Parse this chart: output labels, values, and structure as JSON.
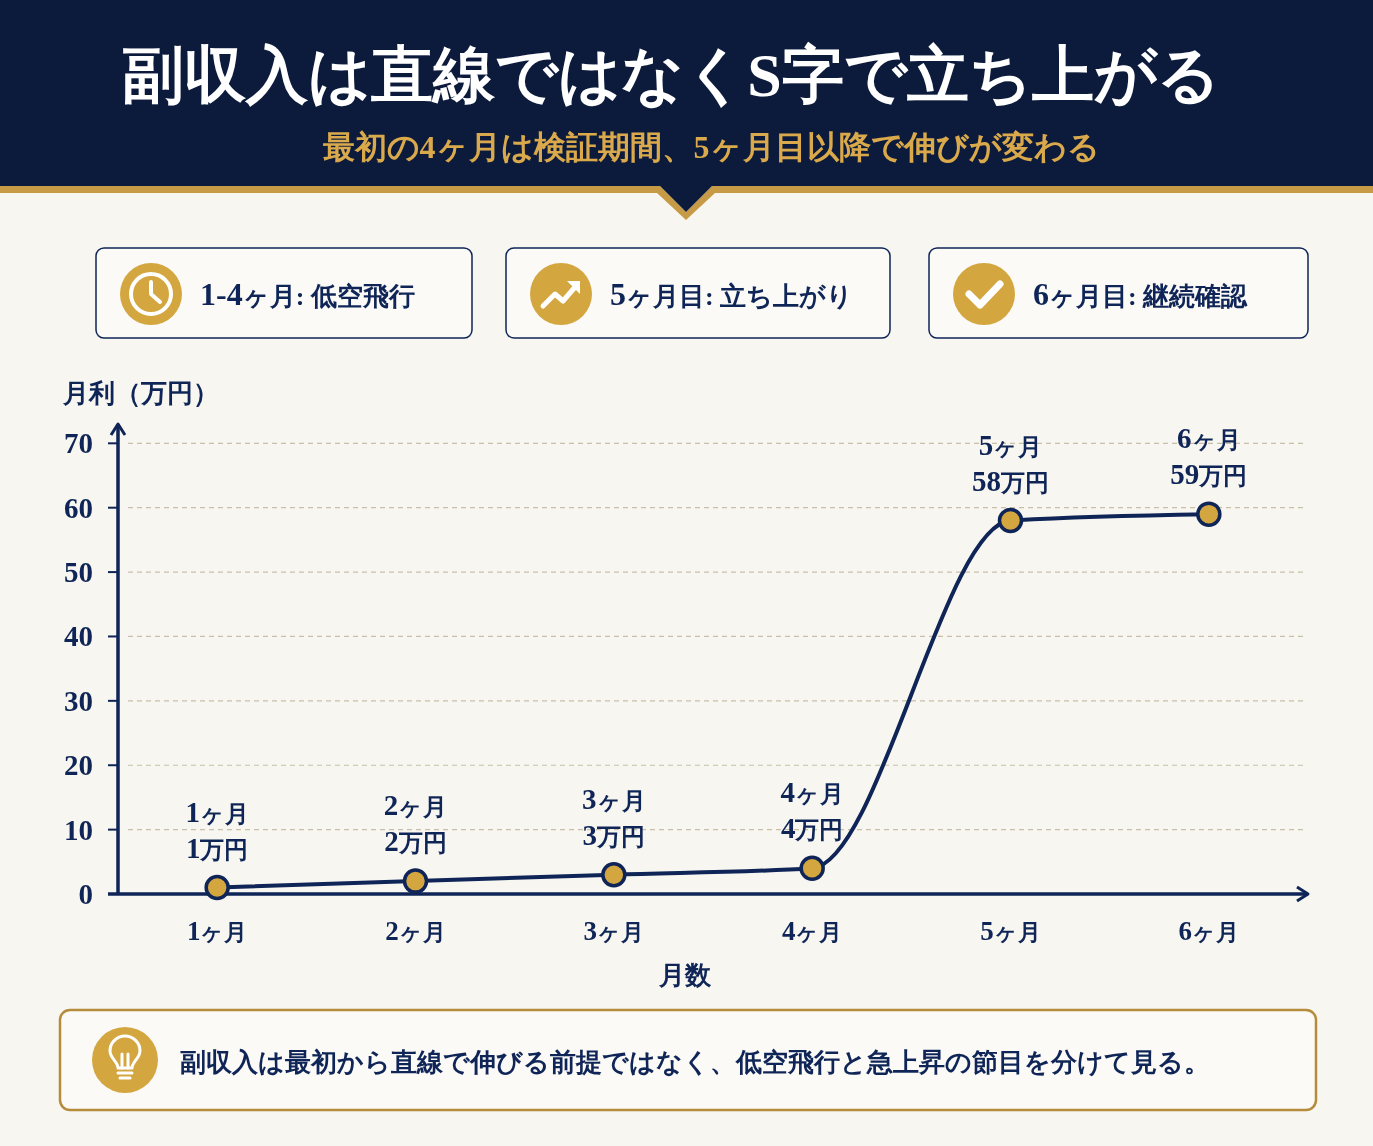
{
  "chart_data": {
    "type": "line",
    "title": "副収入は直線ではなくS字で立ち上がる",
    "subtitle": "最初の4ヶ月は検証期間、5ヶ月目以降で伸びが変わる",
    "xlabel": "月数",
    "ylabel": "月利（万円）",
    "categories": [
      "1ヶ月",
      "2ヶ月",
      "3ヶ月",
      "4ヶ月",
      "5ヶ月",
      "6ヶ月"
    ],
    "series": [
      {
        "color": "#0f2557",
        "values": [
          1,
          2,
          3,
          4,
          58,
          59
        ],
        "value_labels": [
          "1ヶ月\n1万円",
          "2ヶ月\n2万円",
          "3ヶ月\n3万円",
          "4ヶ月\n4万円",
          "5ヶ月\n58万円",
          "6ヶ月\n59万円"
        ]
      }
    ],
    "ylim": [
      0,
      73
    ],
    "yticks": [
      0,
      10,
      20,
      30,
      40,
      50,
      60,
      70
    ],
    "grid": "y",
    "marker": "circle",
    "line_style": "solid",
    "annotations": [
      "1-4ヶ月: 低空飛行",
      "5ヶ月目: 立ち上がり",
      "6ヶ月目: 継続確認",
      "副収入は最初から直線で伸びる前提ではなく、低空飛行と急上昇の節目を分けて見る。"
    ]
  }
}
